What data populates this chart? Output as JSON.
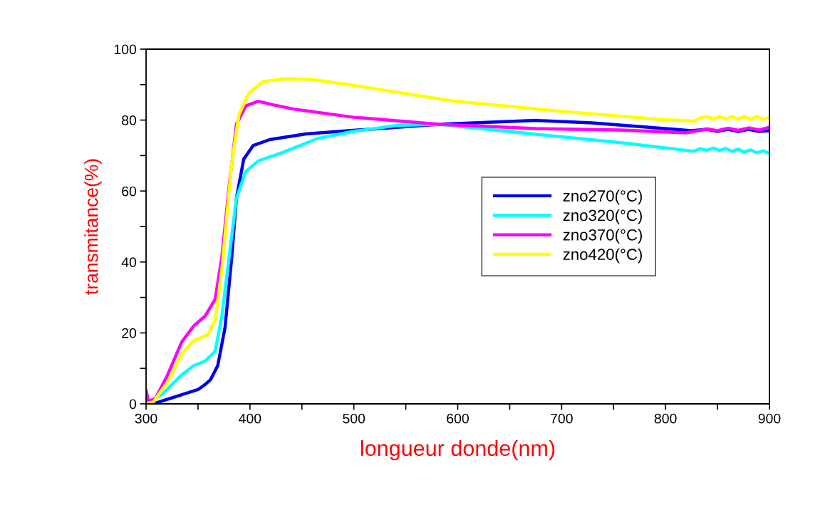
{
  "chart_data": {
    "type": "line",
    "xlabel": "longueur donde(nm)",
    "ylabel": "transmitance(%)",
    "xlim": [
      300,
      900
    ],
    "ylim": [
      0,
      100
    ],
    "xticks": [
      300,
      {
        "value": 350,
        "label": null
      },
      400,
      {
        "value": 450,
        "label": null
      },
      500,
      {
        "value": 550,
        "label": null
      },
      600,
      {
        "value": 650,
        "label": null
      },
      700,
      {
        "value": 750,
        "label": null
      },
      800,
      {
        "value": 850,
        "label": null
      },
      900
    ],
    "yticks": [
      0,
      {
        "value": 10,
        "label": null
      },
      20,
      {
        "value": 30,
        "label": null
      },
      40,
      {
        "value": 50,
        "label": null
      },
      60,
      {
        "value": 70,
        "label": null
      },
      80,
      {
        "value": 90,
        "label": null
      },
      100
    ],
    "grid": false,
    "legend": "center right",
    "marker": "none",
    "line_style": "solid",
    "series": [
      {
        "name": "zno270(°C)",
        "color": "#0000ee",
        "x": [
          307,
          350.5,
          357,
          362,
          369,
          376,
          382.5,
          387,
          394,
          403,
          419,
          454,
          499.5,
          582,
          675,
          729,
          782,
          825,
          840,
          850,
          860,
          870,
          880,
          890,
          900
        ],
        "values": [
          0,
          4.1,
          5.5,
          6.8,
          10.8,
          21.5,
          41.5,
          58,
          69,
          72.8,
          74.5,
          76.1,
          77.1,
          78.8,
          79.9,
          79.2,
          78,
          77,
          77.4,
          76.8,
          77.4,
          76.8,
          77.4,
          76.8,
          77
        ]
      },
      {
        "name": "zno320(°C)",
        "color": "#00ffff",
        "x": [
          300,
          316,
          334,
          346,
          357,
          366.5,
          373,
          380,
          387,
          396,
          408,
          431,
          465,
          499.5,
          542,
          582,
          675,
          755,
          827.4,
          833,
          840,
          846,
          852,
          858,
          864,
          870,
          876,
          882,
          888,
          894,
          900
        ],
        "values": [
          0,
          2.8,
          8.1,
          10.8,
          12.1,
          14.8,
          24.8,
          41.5,
          58,
          65.5,
          68.5,
          70.8,
          74.8,
          76.8,
          78.5,
          78.8,
          76,
          73.7,
          71.2,
          71.9,
          71.5,
          72.1,
          71.4,
          72,
          71.2,
          71.8,
          71,
          71.6,
          70.8,
          71.3,
          70.6
        ]
      },
      {
        "name": "zno370(°C)",
        "color": "#ff00ff",
        "x": [
          300,
          302.3,
          309,
          320.6,
          334.4,
          346,
          357,
          366.5,
          373,
          380,
          387,
          396,
          408,
          419,
          442,
          499.5,
          582,
          675,
          755.4,
          819.5,
          830,
          840,
          850,
          860,
          870,
          880,
          890,
          900
        ],
        "values": [
          3.8,
          0.8,
          1.5,
          8.1,
          17.5,
          22,
          24.8,
          29.5,
          41.5,
          61.5,
          78.8,
          84,
          85.3,
          84.5,
          83.1,
          80.8,
          78.8,
          77.6,
          77.2,
          76.4,
          76.9,
          77.5,
          77,
          77.7,
          77.1,
          77.8,
          77.2,
          78
        ]
      },
      {
        "name": "zno420(°C)",
        "color": "#ffff00",
        "x": [
          300,
          307,
          320.6,
          334.4,
          346,
          359.6,
          366.5,
          373,
          382.5,
          389.4,
          398.6,
          412,
          431,
          458,
          499.5,
          595,
          702,
          798,
          827.4,
          833,
          840,
          846,
          852,
          858,
          864,
          870,
          876,
          882,
          888,
          894,
          900
        ],
        "values": [
          0,
          0.5,
          6.1,
          14.1,
          17.8,
          19.5,
          23.5,
          38,
          68,
          81.5,
          87.5,
          90.8,
          91.6,
          91.5,
          89.8,
          85.4,
          82.4,
          80.1,
          79.7,
          80.6,
          81,
          80.2,
          81,
          80.2,
          81,
          80.2,
          81,
          80.2,
          81,
          80.2,
          80.8
        ]
      }
    ]
  }
}
